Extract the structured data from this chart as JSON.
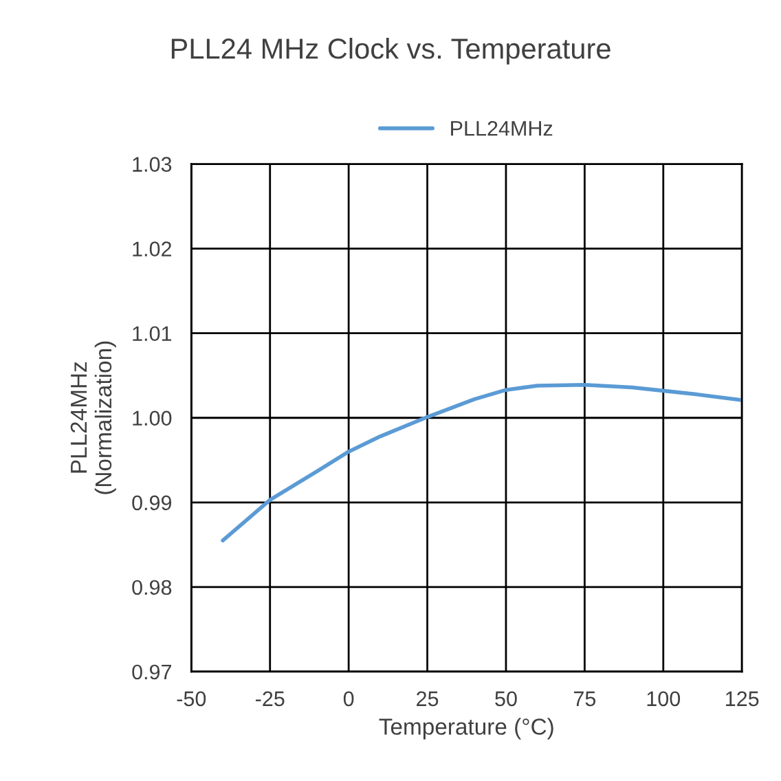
{
  "chart_data": {
    "type": "line",
    "title": "PLL24 MHz Clock vs. Temperature",
    "xlabel": "Temperature (°C)",
    "ylabel": "PLL24MHz\n(Normalization)",
    "x": [
      -40,
      -25,
      -10,
      0,
      10,
      25,
      40,
      50,
      60,
      75,
      90,
      100,
      110,
      125
    ],
    "series": [
      {
        "name": "PLL24MHz",
        "color": "#5b9bd5",
        "values": [
          0.9855,
          0.9903,
          0.9937,
          0.996,
          0.9978,
          1.0001,
          1.0022,
          1.0033,
          1.0038,
          1.0039,
          1.0036,
          1.0032,
          1.0028,
          1.0021
        ]
      }
    ],
    "xlim": [
      -50,
      125
    ],
    "xticks": [
      -50,
      -25,
      0,
      25,
      50,
      75,
      100,
      125
    ],
    "ylim": [
      0.97,
      1.03
    ],
    "yticks": [
      {
        "value": 0.97,
        "label": "0.97"
      },
      {
        "value": 0.98,
        "label": "0.98"
      },
      {
        "value": 0.99,
        "label": "0.99"
      },
      {
        "value": 1.0,
        "label": "1.00"
      },
      {
        "value": 1.01,
        "label": "1.01"
      },
      {
        "value": 1.02,
        "label": "1.02"
      },
      {
        "value": 1.03,
        "label": "1.03"
      }
    ],
    "grid": true,
    "legend": "top",
    "marker": "none",
    "line_style": "solid"
  }
}
